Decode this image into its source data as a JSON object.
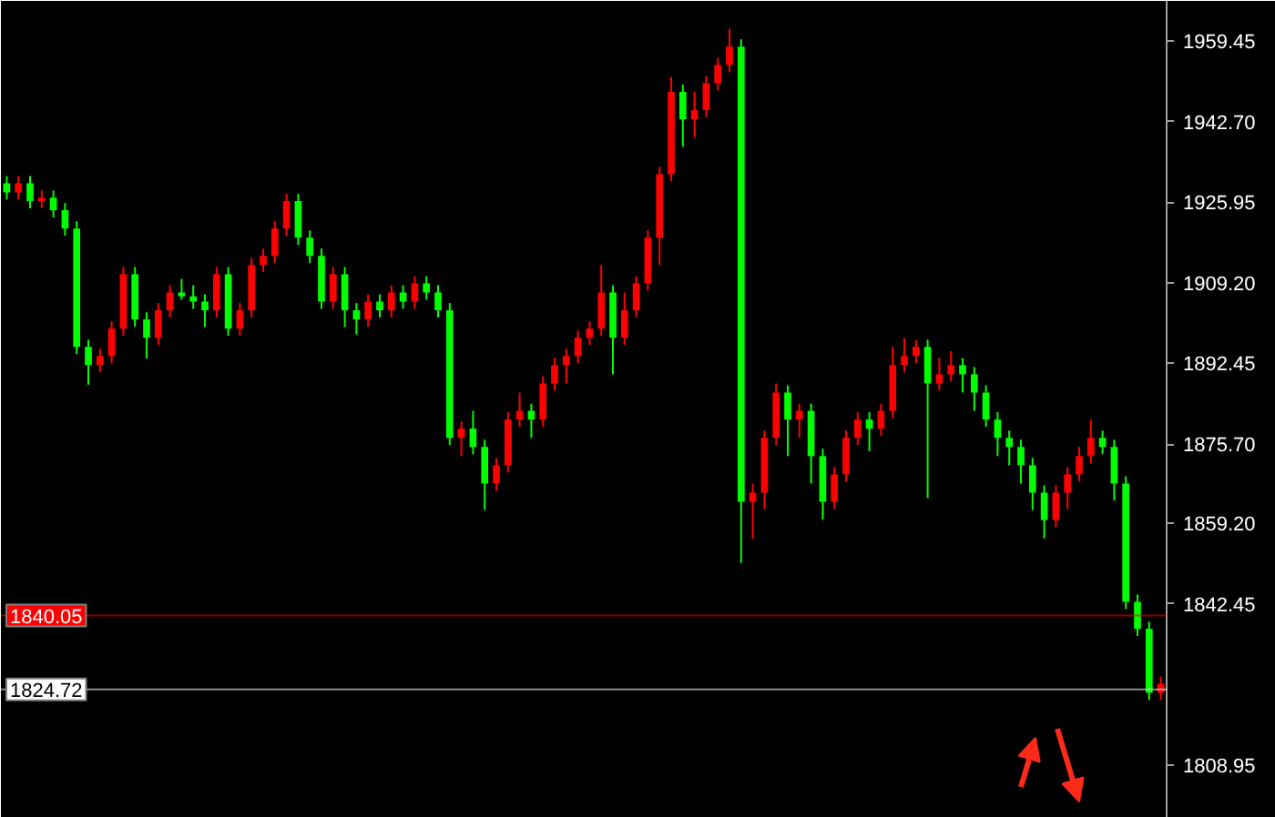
{
  "chart_data": {
    "type": "candlestick",
    "categories": [
      null,
      null,
      null,
      null,
      null,
      null,
      null,
      null,
      null,
      null,
      null,
      null,
      null,
      null,
      null,
      null,
      null,
      null,
      null,
      null,
      null,
      null,
      null,
      null,
      null,
      null,
      null,
      null,
      null,
      null,
      null,
      null,
      null,
      null,
      null,
      null,
      null,
      null,
      null,
      null,
      null,
      null,
      null,
      null,
      null,
      null,
      null,
      null,
      null,
      null,
      null,
      null,
      null,
      null,
      null,
      null,
      null,
      null,
      null,
      null,
      null,
      null,
      null,
      null,
      null,
      null,
      null,
      null,
      null,
      null,
      null,
      null,
      null,
      null,
      null,
      null,
      null,
      null,
      null,
      null,
      null,
      null,
      null,
      null,
      null,
      null,
      null,
      null,
      null,
      null,
      null,
      null,
      null,
      null,
      null,
      null,
      null,
      null,
      null,
      null
    ],
    "ohlc": [
      [
        1929.9,
        1931.4,
        1926.5,
        1928.0
      ],
      [
        1928.0,
        1931.4,
        1926.5,
        1929.9
      ],
      [
        1929.9,
        1931.4,
        1924.7,
        1926.2
      ],
      [
        1926.2,
        1928.4,
        1924.7,
        1926.9
      ],
      [
        1926.9,
        1928.4,
        1922.8,
        1924.3
      ],
      [
        1924.3,
        1925.8,
        1919.0,
        1920.5
      ],
      [
        1920.5,
        1922.0,
        1894.4,
        1895.9
      ],
      [
        1895.9,
        1897.4,
        1888.0,
        1892.1
      ],
      [
        1892.1,
        1895.5,
        1890.6,
        1894.0
      ],
      [
        1894.0,
        1901.2,
        1892.5,
        1899.7
      ],
      [
        1899.7,
        1912.5,
        1898.2,
        1911.0
      ],
      [
        1911.0,
        1912.5,
        1900.1,
        1901.6
      ],
      [
        1901.6,
        1903.1,
        1893.5,
        1897.8
      ],
      [
        1897.8,
        1905.0,
        1896.3,
        1903.5
      ],
      [
        1903.5,
        1908.7,
        1902.0,
        1907.2
      ],
      [
        1907.2,
        1910.0,
        1905.7,
        1906.4
      ],
      [
        1906.4,
        1908.7,
        1903.8,
        1905.3
      ],
      [
        1905.3,
        1906.8,
        1900.0,
        1903.5
      ],
      [
        1903.5,
        1912.5,
        1902.0,
        1911.0
      ],
      [
        1911.0,
        1912.5,
        1898.2,
        1899.7
      ],
      [
        1899.7,
        1905.0,
        1898.2,
        1903.5
      ],
      [
        1903.5,
        1914.4,
        1902.0,
        1912.9
      ],
      [
        1912.9,
        1916.3,
        1911.4,
        1914.8
      ],
      [
        1914.8,
        1922.0,
        1913.3,
        1920.5
      ],
      [
        1920.5,
        1927.7,
        1919.0,
        1926.2
      ],
      [
        1926.2,
        1927.7,
        1917.1,
        1918.6
      ],
      [
        1918.6,
        1920.1,
        1913.3,
        1914.8
      ],
      [
        1914.8,
        1916.3,
        1903.8,
        1905.3
      ],
      [
        1905.3,
        1912.5,
        1903.8,
        1911.0
      ],
      [
        1911.0,
        1912.5,
        1900.0,
        1903.5
      ],
      [
        1903.5,
        1905.0,
        1898.5,
        1901.6
      ],
      [
        1901.6,
        1906.8,
        1900.1,
        1905.3
      ],
      [
        1905.3,
        1906.8,
        1902.0,
        1903.5
      ],
      [
        1903.5,
        1908.7,
        1902.0,
        1907.2
      ],
      [
        1907.2,
        1908.7,
        1903.8,
        1905.3
      ],
      [
        1905.3,
        1910.6,
        1903.8,
        1909.1
      ],
      [
        1909.1,
        1910.6,
        1905.7,
        1907.2
      ],
      [
        1907.2,
        1908.7,
        1902.0,
        1903.5
      ],
      [
        1903.5,
        1905.0,
        1875.5,
        1877.0
      ],
      [
        1877.0,
        1880.4,
        1873.2,
        1878.9
      ],
      [
        1878.9,
        1882.6,
        1873.6,
        1875.1
      ],
      [
        1875.1,
        1876.6,
        1862.0,
        1867.5
      ],
      [
        1867.5,
        1872.8,
        1866.0,
        1871.3
      ],
      [
        1871.3,
        1882.3,
        1869.8,
        1880.8
      ],
      [
        1880.8,
        1886.4,
        1879.3,
        1882.6
      ],
      [
        1882.6,
        1884.1,
        1877.0,
        1880.8
      ],
      [
        1880.8,
        1889.8,
        1879.3,
        1888.3
      ],
      [
        1888.3,
        1893.6,
        1886.8,
        1892.1
      ],
      [
        1892.1,
        1895.5,
        1888.3,
        1894.0
      ],
      [
        1894.0,
        1899.3,
        1892.5,
        1897.8
      ],
      [
        1897.8,
        1901.2,
        1896.3,
        1899.7
      ],
      [
        1899.7,
        1912.9,
        1898.2,
        1907.2
      ],
      [
        1907.2,
        1908.7,
        1890.2,
        1897.8
      ],
      [
        1897.8,
        1907.2,
        1896.3,
        1903.5
      ],
      [
        1903.5,
        1910.6,
        1902.0,
        1909.1
      ],
      [
        1909.1,
        1920.1,
        1907.6,
        1918.6
      ],
      [
        1918.6,
        1933.3,
        1912.9,
        1931.8
      ],
      [
        1931.8,
        1952.0,
        1930.3,
        1948.9
      ],
      [
        1948.9,
        1950.4,
        1937.5,
        1943.2
      ],
      [
        1943.2,
        1948.9,
        1939.4,
        1945.1
      ],
      [
        1945.1,
        1952.2,
        1943.6,
        1950.7
      ],
      [
        1950.7,
        1956.0,
        1949.2,
        1954.5
      ],
      [
        1954.5,
        1962.0,
        1953.0,
        1958.3
      ],
      [
        1958.3,
        1959.8,
        1851.0,
        1863.7
      ],
      [
        1863.7,
        1867.5,
        1856.0,
        1865.6
      ],
      [
        1865.6,
        1878.5,
        1862.2,
        1877.0
      ],
      [
        1877.0,
        1888.3,
        1875.5,
        1886.4
      ],
      [
        1886.4,
        1887.9,
        1873.2,
        1880.8
      ],
      [
        1880.8,
        1884.1,
        1877.0,
        1882.6
      ],
      [
        1882.6,
        1884.1,
        1867.5,
        1873.2
      ],
      [
        1873.2,
        1874.7,
        1860.0,
        1863.7
      ],
      [
        1863.7,
        1870.9,
        1862.2,
        1869.4
      ],
      [
        1869.4,
        1878.5,
        1867.9,
        1877.0
      ],
      [
        1877.0,
        1882.3,
        1875.5,
        1880.8
      ],
      [
        1880.8,
        1882.3,
        1874.2,
        1878.9
      ],
      [
        1878.9,
        1884.1,
        1877.4,
        1882.6
      ],
      [
        1882.6,
        1895.9,
        1881.1,
        1892.1
      ],
      [
        1892.1,
        1897.8,
        1890.6,
        1894.0
      ],
      [
        1894.0,
        1897.4,
        1892.5,
        1895.9
      ],
      [
        1895.9,
        1897.4,
        1864.5,
        1888.3
      ],
      [
        1888.3,
        1893.6,
        1886.8,
        1890.2
      ],
      [
        1890.2,
        1895.0,
        1888.7,
        1892.1
      ],
      [
        1892.1,
        1893.6,
        1886.4,
        1890.2
      ],
      [
        1890.2,
        1891.7,
        1882.6,
        1886.4
      ],
      [
        1886.4,
        1887.9,
        1879.3,
        1880.8
      ],
      [
        1880.8,
        1882.3,
        1873.2,
        1877.0
      ],
      [
        1877.0,
        1878.5,
        1871.3,
        1875.1
      ],
      [
        1875.1,
        1876.6,
        1867.5,
        1871.3
      ],
      [
        1871.3,
        1872.8,
        1862.0,
        1865.6
      ],
      [
        1865.6,
        1867.1,
        1856.1,
        1859.9
      ],
      [
        1859.9,
        1867.1,
        1858.4,
        1865.6
      ],
      [
        1865.6,
        1870.9,
        1862.2,
        1869.4
      ],
      [
        1869.4,
        1875.1,
        1867.9,
        1873.2
      ],
      [
        1873.2,
        1880.8,
        1871.7,
        1877.0
      ],
      [
        1877.0,
        1878.5,
        1873.6,
        1875.1
      ],
      [
        1875.1,
        1876.6,
        1864.0,
        1867.5
      ],
      [
        1867.5,
        1869.0,
        1841.4,
        1842.9
      ],
      [
        1842.9,
        1844.4,
        1835.8,
        1837.3
      ],
      [
        1837.3,
        1838.8,
        1822.5,
        1824.0
      ],
      [
        1824.0,
        1827.4,
        1822.5,
        1825.9
      ]
    ],
    "colors": [
      "#00ff00",
      "#ff0000",
      "#00ff00",
      "#ff0000",
      "#00ff00",
      "#00ff00",
      "#00ff00",
      "#00ff00",
      "#ff0000",
      "#ff0000",
      "#ff0000",
      "#00ff00",
      "#00ff00",
      "#ff0000",
      "#ff0000",
      "#00ff00",
      "#00ff00",
      "#00ff00",
      "#ff0000",
      "#00ff00",
      "#ff0000",
      "#ff0000",
      "#ff0000",
      "#ff0000",
      "#ff0000",
      "#00ff00",
      "#00ff00",
      "#00ff00",
      "#ff0000",
      "#00ff00",
      "#00ff00",
      "#ff0000",
      "#00ff00",
      "#ff0000",
      "#00ff00",
      "#ff0000",
      "#00ff00",
      "#00ff00",
      "#00ff00",
      "#ff0000",
      "#00ff00",
      "#00ff00",
      "#ff0000",
      "#ff0000",
      "#ff0000",
      "#00ff00",
      "#ff0000",
      "#ff0000",
      "#ff0000",
      "#ff0000",
      "#ff0000",
      "#ff0000",
      "#00ff00",
      "#ff0000",
      "#ff0000",
      "#ff0000",
      "#ff0000",
      "#ff0000",
      "#00ff00",
      "#ff0000",
      "#ff0000",
      "#ff0000",
      "#ff0000",
      "#00ff00",
      "#ff0000",
      "#ff0000",
      "#ff0000",
      "#00ff00",
      "#ff0000",
      "#00ff00",
      "#00ff00",
      "#ff0000",
      "#ff0000",
      "#ff0000",
      "#00ff00",
      "#ff0000",
      "#ff0000",
      "#ff0000",
      "#ff0000",
      "#00ff00",
      "#ff0000",
      "#ff0000",
      "#00ff00",
      "#00ff00",
      "#00ff00",
      "#00ff00",
      "#00ff00",
      "#00ff00",
      "#00ff00",
      "#00ff00",
      "#ff0000",
      "#ff0000",
      "#ff0000",
      "#ff0000",
      "#00ff00",
      "#00ff00",
      "#00ff00",
      "#00ff00",
      "#00ff00",
      "#ff0000"
    ],
    "ylim": [
      1798.0,
      1967.8
    ],
    "yticks": [
      1808.95,
      1842.45,
      {
        "value": 1859.2,
        "label": "1859.20"
      },
      {
        "value": 1875.7,
        "label": "1875.70"
      },
      1892.45,
      {
        "value": 1909.2,
        "label": "1909.20"
      },
      1925.95,
      {
        "value": 1942.7,
        "label": "1942.70"
      },
      1959.45
    ],
    "ref_lines": [
      {
        "axis": "y",
        "value": 1840.05,
        "label": "1840.05",
        "color": "#ff0000"
      },
      {
        "axis": "y",
        "value": 1824.72,
        "label": "1824.72",
        "color": "#ffffff"
      }
    ],
    "grid": false
  }
}
